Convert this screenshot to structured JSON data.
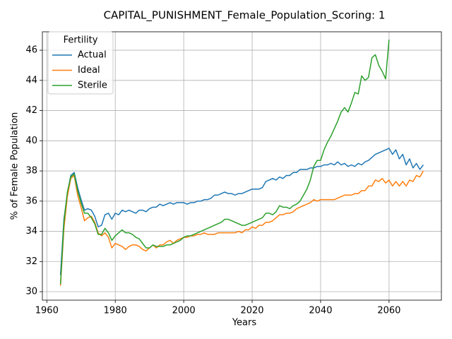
{
  "chart_data": {
    "type": "line",
    "title": "CAPITAL_PUNISHMENT_Female_Population_Scoring: 1",
    "xlabel": "Years",
    "ylabel": "% of Female Population",
    "legend_title": "Fertility",
    "legend": "upper left",
    "grid": true,
    "x": [
      1964,
      1965,
      1966,
      1967,
      1968,
      1969,
      1970,
      1971,
      1972,
      1973,
      1974,
      1975,
      1976,
      1977,
      1978,
      1979,
      1980,
      1981,
      1982,
      1983,
      1984,
      1985,
      1986,
      1987,
      1988,
      1989,
      1990,
      1991,
      1992,
      1993,
      1994,
      1995,
      1996,
      1997,
      1998,
      1999,
      2000,
      2001,
      2002,
      2003,
      2004,
      2005,
      2006,
      2007,
      2008,
      2009,
      2010,
      2011,
      2012,
      2013,
      2014,
      2015,
      2016,
      2017,
      2018,
      2019,
      2020,
      2021,
      2022,
      2023,
      2024,
      2025,
      2026,
      2027,
      2028,
      2029,
      2030,
      2031,
      2032,
      2033,
      2034,
      2035,
      2036,
      2037,
      2038,
      2039,
      2040,
      2041,
      2042,
      2043,
      2044,
      2045,
      2046,
      2047,
      2048,
      2049,
      2050,
      2051,
      2052,
      2053,
      2054,
      2055,
      2056,
      2057,
      2058,
      2059,
      2060,
      2061,
      2062,
      2063,
      2064,
      2065,
      2066,
      2067,
      2068,
      2069,
      2070
    ],
    "series": [
      {
        "name": "Actual",
        "color": "#1f77b4",
        "values": [
          31.1,
          34.8,
          36.5,
          37.7,
          37.9,
          36.9,
          36.1,
          35.4,
          35.5,
          35.4,
          35.0,
          34.3,
          34.4,
          35.1,
          35.2,
          34.8,
          35.2,
          35.1,
          35.4,
          35.3,
          35.4,
          35.3,
          35.2,
          35.4,
          35.4,
          35.3,
          35.5,
          35.6,
          35.6,
          35.8,
          35.7,
          35.8,
          35.9,
          35.8,
          35.9,
          35.9,
          35.9,
          35.8,
          35.9,
          35.9,
          36.0,
          36.0,
          36.1,
          36.1,
          36.2,
          36.4,
          36.4,
          36.5,
          36.6,
          36.5,
          36.5,
          36.4,
          36.5,
          36.5,
          36.6,
          36.7,
          36.8,
          36.8,
          36.8,
          36.9,
          37.3,
          37.4,
          37.5,
          37.4,
          37.6,
          37.5,
          37.7,
          37.7,
          37.9,
          37.9,
          38.1,
          38.1,
          38.1,
          38.2,
          38.2,
          38.3,
          38.3,
          38.4,
          38.4,
          38.5,
          38.4,
          38.6,
          38.4,
          38.5,
          38.3,
          38.4,
          38.3,
          38.5,
          38.4,
          38.6,
          38.7,
          38.9,
          39.1,
          39.2,
          39.3,
          39.4,
          39.5,
          39.1,
          39.4,
          38.8,
          39.1,
          38.4,
          38.8,
          38.2,
          38.5,
          38.1,
          38.4
        ]
      },
      {
        "name": "Ideal",
        "color": "#ff7f0e",
        "values": [
          30.4,
          34.2,
          36.3,
          37.5,
          37.7,
          36.4,
          35.6,
          34.7,
          34.9,
          35.0,
          34.6,
          33.9,
          33.7,
          33.9,
          33.6,
          32.9,
          33.2,
          33.1,
          33.0,
          32.8,
          33.0,
          33.1,
          33.1,
          33.0,
          32.8,
          32.7,
          32.9,
          33.1,
          32.9,
          33.1,
          33.1,
          33.3,
          33.4,
          33.2,
          33.4,
          33.5,
          33.6,
          33.6,
          33.7,
          33.7,
          33.8,
          33.8,
          33.9,
          33.8,
          33.8,
          33.8,
          33.9,
          33.9,
          33.9,
          33.9,
          33.9,
          33.9,
          34.0,
          33.9,
          34.1,
          34.1,
          34.3,
          34.2,
          34.4,
          34.4,
          34.6,
          34.6,
          34.7,
          34.9,
          35.1,
          35.1,
          35.2,
          35.2,
          35.3,
          35.5,
          35.6,
          35.7,
          35.8,
          35.9,
          36.1,
          36.0,
          36.1,
          36.1,
          36.1,
          36.1,
          36.1,
          36.2,
          36.3,
          36.4,
          36.4,
          36.4,
          36.5,
          36.5,
          36.7,
          36.7,
          37.0,
          37.0,
          37.4,
          37.3,
          37.5,
          37.2,
          37.4,
          37.0,
          37.3,
          37.0,
          37.3,
          37.0,
          37.4,
          37.3,
          37.7,
          37.6,
          38.0
        ]
      },
      {
        "name": "Sterile",
        "color": "#2ca02c",
        "values": [
          30.5,
          34.6,
          36.6,
          37.6,
          37.8,
          36.7,
          35.9,
          35.2,
          35.2,
          34.9,
          34.5,
          33.8,
          33.8,
          34.2,
          33.9,
          33.4,
          33.7,
          33.9,
          34.1,
          33.9,
          33.9,
          33.8,
          33.6,
          33.5,
          33.2,
          32.9,
          32.9,
          33.1,
          33.0,
          33.0,
          33.0,
          33.1,
          33.1,
          33.2,
          33.3,
          33.4,
          33.6,
          33.7,
          33.7,
          33.8,
          33.9,
          34.0,
          34.1,
          34.2,
          34.3,
          34.4,
          34.5,
          34.6,
          34.8,
          34.8,
          34.7,
          34.6,
          34.5,
          34.4,
          34.4,
          34.5,
          34.6,
          34.7,
          34.8,
          34.9,
          35.2,
          35.2,
          35.1,
          35.3,
          35.7,
          35.6,
          35.6,
          35.5,
          35.7,
          35.8,
          36.0,
          36.4,
          36.8,
          37.4,
          38.3,
          38.7,
          38.7,
          39.4,
          39.9,
          40.3,
          40.8,
          41.3,
          41.9,
          42.2,
          41.9,
          42.5,
          43.2,
          43.1,
          44.3,
          44.0,
          44.2,
          45.5,
          45.7,
          45.0,
          44.6,
          44.1,
          46.7,
          null,
          null,
          null,
          null,
          null,
          null,
          null,
          null,
          null,
          null
        ]
      }
    ],
    "xlim": [
      1958.7,
      2075.3
    ],
    "xticks": [
      1960,
      1980,
      2000,
      2020,
      2040,
      2060
    ],
    "ylim": [
      29.44,
      47.22
    ],
    "yticks": [
      30,
      32,
      34,
      36,
      38,
      40,
      42,
      44,
      46
    ]
  }
}
